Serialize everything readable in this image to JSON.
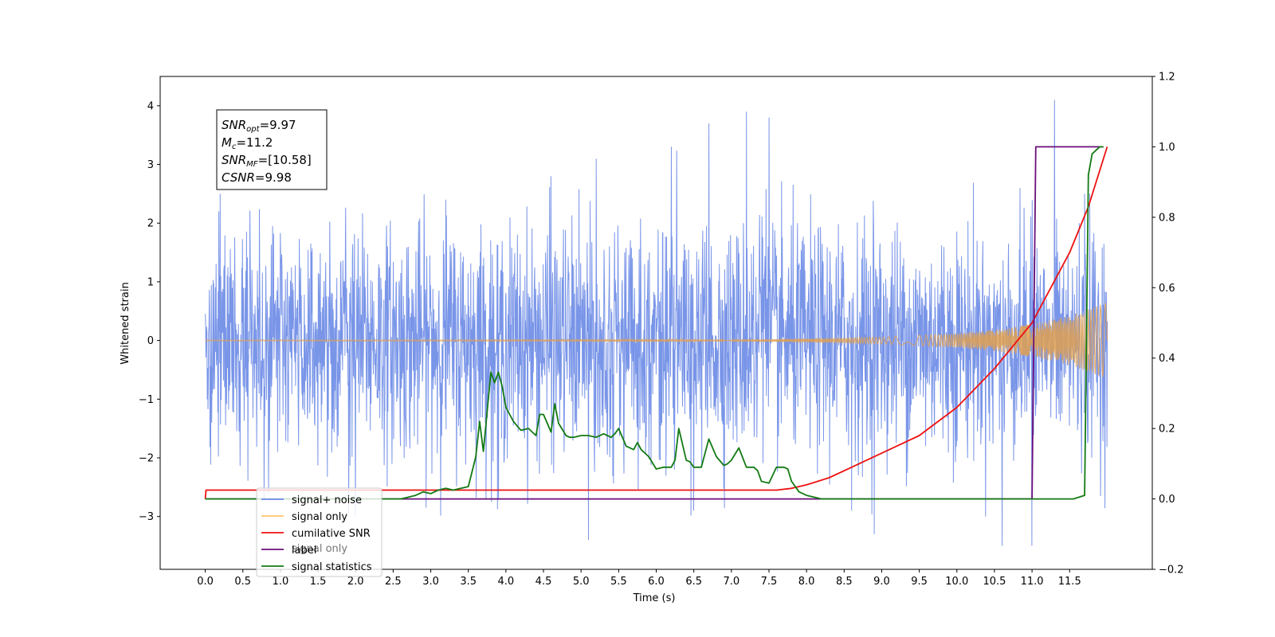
{
  "chart_data": {
    "type": "line",
    "xlabel": "Time (s)",
    "ylabel": "Whitened strain",
    "xlim": [
      -0.6,
      12.6
    ],
    "ylim": [
      -3.9,
      4.5
    ],
    "y2lim": [
      -0.2,
      1.2
    ],
    "x_ticks": [
      "0.0",
      "0.5",
      "1.0",
      "1.5",
      "2.0",
      "2.5",
      "3.0",
      "3.5",
      "4.0",
      "4.5",
      "5.0",
      "5.5",
      "6.0",
      "6.5",
      "7.0",
      "7.5",
      "8.0",
      "8.5",
      "9.0",
      "9.5",
      "10.0",
      "10.5",
      "11.0",
      "11.5"
    ],
    "y_ticks": [
      "4",
      "3",
      "2",
      "1",
      "0",
      "−1",
      "−2",
      "−3"
    ],
    "y2_ticks": [
      "1.2",
      "1.0",
      "0.8",
      "0.6",
      "0.4",
      "0.2",
      "0.0",
      "−0.2"
    ],
    "annotation": [
      {
        "symbol": "SNR",
        "sub": "opt",
        "value": "=9.97"
      },
      {
        "symbol": "M",
        "sub": "c",
        "value": "=11.2"
      },
      {
        "symbol": "SNR",
        "sub": "MF",
        "value": "=[10.58]"
      },
      {
        "symbol": "CSNR",
        "sub": "",
        "value": "=9.98"
      }
    ],
    "legend_position": "bottom-left",
    "legend": [
      {
        "label": "signal+ noise",
        "color": "#6a89e6"
      },
      {
        "label": "signal only",
        "color": "#ffc56b"
      },
      {
        "label": "cumilative SNR",
        "color": "#ee1111"
      },
      {
        "label": "label",
        "color": "#6a0f7a"
      },
      {
        "label": "signal statistics",
        "color": "#137a13"
      }
    ],
    "hidden_legend_text": "signal only",
    "series": [
      {
        "name": "signal+ noise",
        "axis": "left",
        "color": "#6a89e6",
        "duration_s": 12.0,
        "noise_sigma": 0.95,
        "sample_spacing_s": 0.0045,
        "peaks": [
          [
            0.2,
            2.5
          ],
          [
            2.0,
            -3.0
          ],
          [
            3.2,
            2.4
          ],
          [
            3.9,
            -2.7
          ],
          [
            4.6,
            2.8
          ],
          [
            5.1,
            -3.4
          ],
          [
            5.2,
            3.1
          ],
          [
            6.2,
            3.3
          ],
          [
            6.5,
            -2.9
          ],
          [
            6.7,
            3.7
          ],
          [
            7.2,
            3.9
          ],
          [
            7.5,
            3.8
          ],
          [
            8.6,
            -2.9
          ],
          [
            8.9,
            -3.3
          ],
          [
            10.6,
            -3.5
          ],
          [
            11.0,
            -3.5
          ],
          [
            11.3,
            4.1
          ],
          [
            11.7,
            2.5
          ]
        ]
      },
      {
        "name": "signal only",
        "axis": "left",
        "color": "#e0a050",
        "envelope": [
          [
            0.0,
            0.01
          ],
          [
            7.0,
            0.015
          ],
          [
            8.0,
            0.03
          ],
          [
            9.0,
            0.06
          ],
          [
            10.0,
            0.12
          ],
          [
            10.5,
            0.18
          ],
          [
            11.0,
            0.28
          ],
          [
            11.5,
            0.42
          ],
          [
            12.0,
            0.65
          ]
        ]
      },
      {
        "name": "cumilative SNR",
        "axis": "right",
        "color": "#ee1111",
        "x": [
          0.0,
          0.01,
          7.6,
          7.8,
          8.0,
          8.3,
          8.6,
          9.0,
          9.5,
          10.0,
          10.5,
          11.0,
          11.5,
          11.75,
          12.0
        ],
        "values": [
          0.0,
          0.025,
          0.025,
          0.03,
          0.04,
          0.06,
          0.09,
          0.13,
          0.18,
          0.26,
          0.37,
          0.5,
          0.7,
          0.83,
          1.0
        ]
      },
      {
        "name": "label",
        "axis": "right",
        "color": "#6a0f7a",
        "x": [
          0.0,
          11.0,
          11.05,
          11.95
        ],
        "values": [
          0.0,
          0.0,
          1.0,
          1.0
        ]
      },
      {
        "name": "signal statistics",
        "axis": "right",
        "color": "#137a13",
        "x": [
          0.0,
          2.6,
          2.7,
          2.8,
          2.9,
          3.0,
          3.1,
          3.2,
          3.3,
          3.4,
          3.5,
          3.6,
          3.65,
          3.7,
          3.8,
          3.85,
          3.9,
          3.95,
          4.0,
          4.05,
          4.1,
          4.2,
          4.3,
          4.4,
          4.45,
          4.5,
          4.6,
          4.65,
          4.7,
          4.8,
          4.85,
          4.9,
          5.0,
          5.1,
          5.2,
          5.3,
          5.4,
          5.45,
          5.5,
          5.6,
          5.7,
          5.75,
          5.8,
          5.9,
          6.0,
          6.1,
          6.2,
          6.25,
          6.3,
          6.4,
          6.45,
          6.5,
          6.6,
          6.7,
          6.8,
          6.9,
          6.95,
          7.0,
          7.1,
          7.2,
          7.3,
          7.35,
          7.4,
          7.5,
          7.6,
          7.7,
          7.75,
          7.8,
          7.9,
          8.0,
          8.1,
          8.2,
          8.5,
          11.55,
          11.7,
          11.75,
          11.8,
          11.85,
          11.9,
          11.95
        ],
        "values": [
          0.0,
          0.0,
          0.005,
          0.01,
          0.02,
          0.015,
          0.025,
          0.03,
          0.025,
          0.03,
          0.035,
          0.12,
          0.22,
          0.135,
          0.36,
          0.33,
          0.36,
          0.32,
          0.26,
          0.24,
          0.22,
          0.195,
          0.2,
          0.18,
          0.24,
          0.24,
          0.19,
          0.27,
          0.215,
          0.18,
          0.175,
          0.175,
          0.18,
          0.18,
          0.175,
          0.185,
          0.175,
          0.185,
          0.2,
          0.15,
          0.14,
          0.16,
          0.14,
          0.12,
          0.085,
          0.09,
          0.09,
          0.11,
          0.2,
          0.11,
          0.105,
          0.09,
          0.09,
          0.17,
          0.12,
          0.095,
          0.1,
          0.11,
          0.145,
          0.09,
          0.09,
          0.08,
          0.05,
          0.045,
          0.09,
          0.09,
          0.085,
          0.05,
          0.02,
          0.01,
          0.005,
          0.0,
          0.0,
          0.0,
          0.01,
          0.92,
          0.98,
          0.99,
          1.0,
          1.0
        ]
      }
    ]
  }
}
